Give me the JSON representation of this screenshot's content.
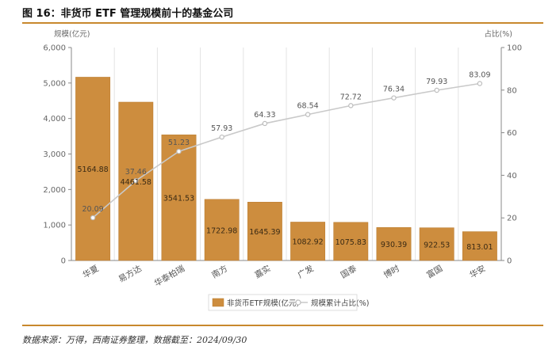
{
  "figure": {
    "title": "图 16：非货币 ETF 管理规模前十的基金公司",
    "source": "数据来源：万得，西南证券整理，数据截至：2024/09/30"
  },
  "colors": {
    "bar": "#cd8d3e",
    "bar_stroke": "#b87a2e",
    "line": "#c9c9c9",
    "accent_rule": "#c8882d"
  },
  "chart_data": {
    "type": "bar",
    "categories": [
      "华夏",
      "易方达",
      "华泰柏瑞",
      "南方",
      "嘉实",
      "广发",
      "国泰",
      "博时",
      "富国",
      "华安"
    ],
    "series": [
      {
        "name": "非货币ETF规模(亿元)",
        "type": "bar",
        "axis": "left",
        "values": [
          5164.88,
          4461.58,
          3541.53,
          1722.98,
          1645.39,
          1082.92,
          1075.83,
          930.39,
          922.53,
          813.01
        ],
        "labels": [
          "5164.88",
          "4461.58",
          "3541.53",
          "1722.98",
          "1645.39",
          "1082.92",
          "1075.83",
          "930.39",
          "922.53",
          "813.01"
        ]
      },
      {
        "name": "规模累计占比(%)",
        "type": "line",
        "axis": "right",
        "values": [
          20.09,
          37.46,
          51.23,
          57.93,
          64.33,
          68.54,
          72.72,
          76.34,
          79.93,
          83.09
        ],
        "labels": [
          "20.09",
          "37.46",
          "51.23",
          "57.93",
          "64.33",
          "68.54",
          "72.72",
          "76.34",
          "79.93",
          "83.09"
        ]
      }
    ],
    "ylabel_left": "规模(亿元)",
    "ylabel_right": "占比(%)",
    "ylim_left": [
      0,
      6000
    ],
    "ylim_right": [
      0,
      100
    ],
    "yticks_left": [
      "0",
      "1,000",
      "2,000",
      "3,000",
      "4,000",
      "5,000",
      "6,000"
    ],
    "yticks_right": [
      "0",
      "20",
      "40",
      "60",
      "80",
      "100"
    ],
    "grid": "vertical",
    "legend": "bottom-center"
  }
}
